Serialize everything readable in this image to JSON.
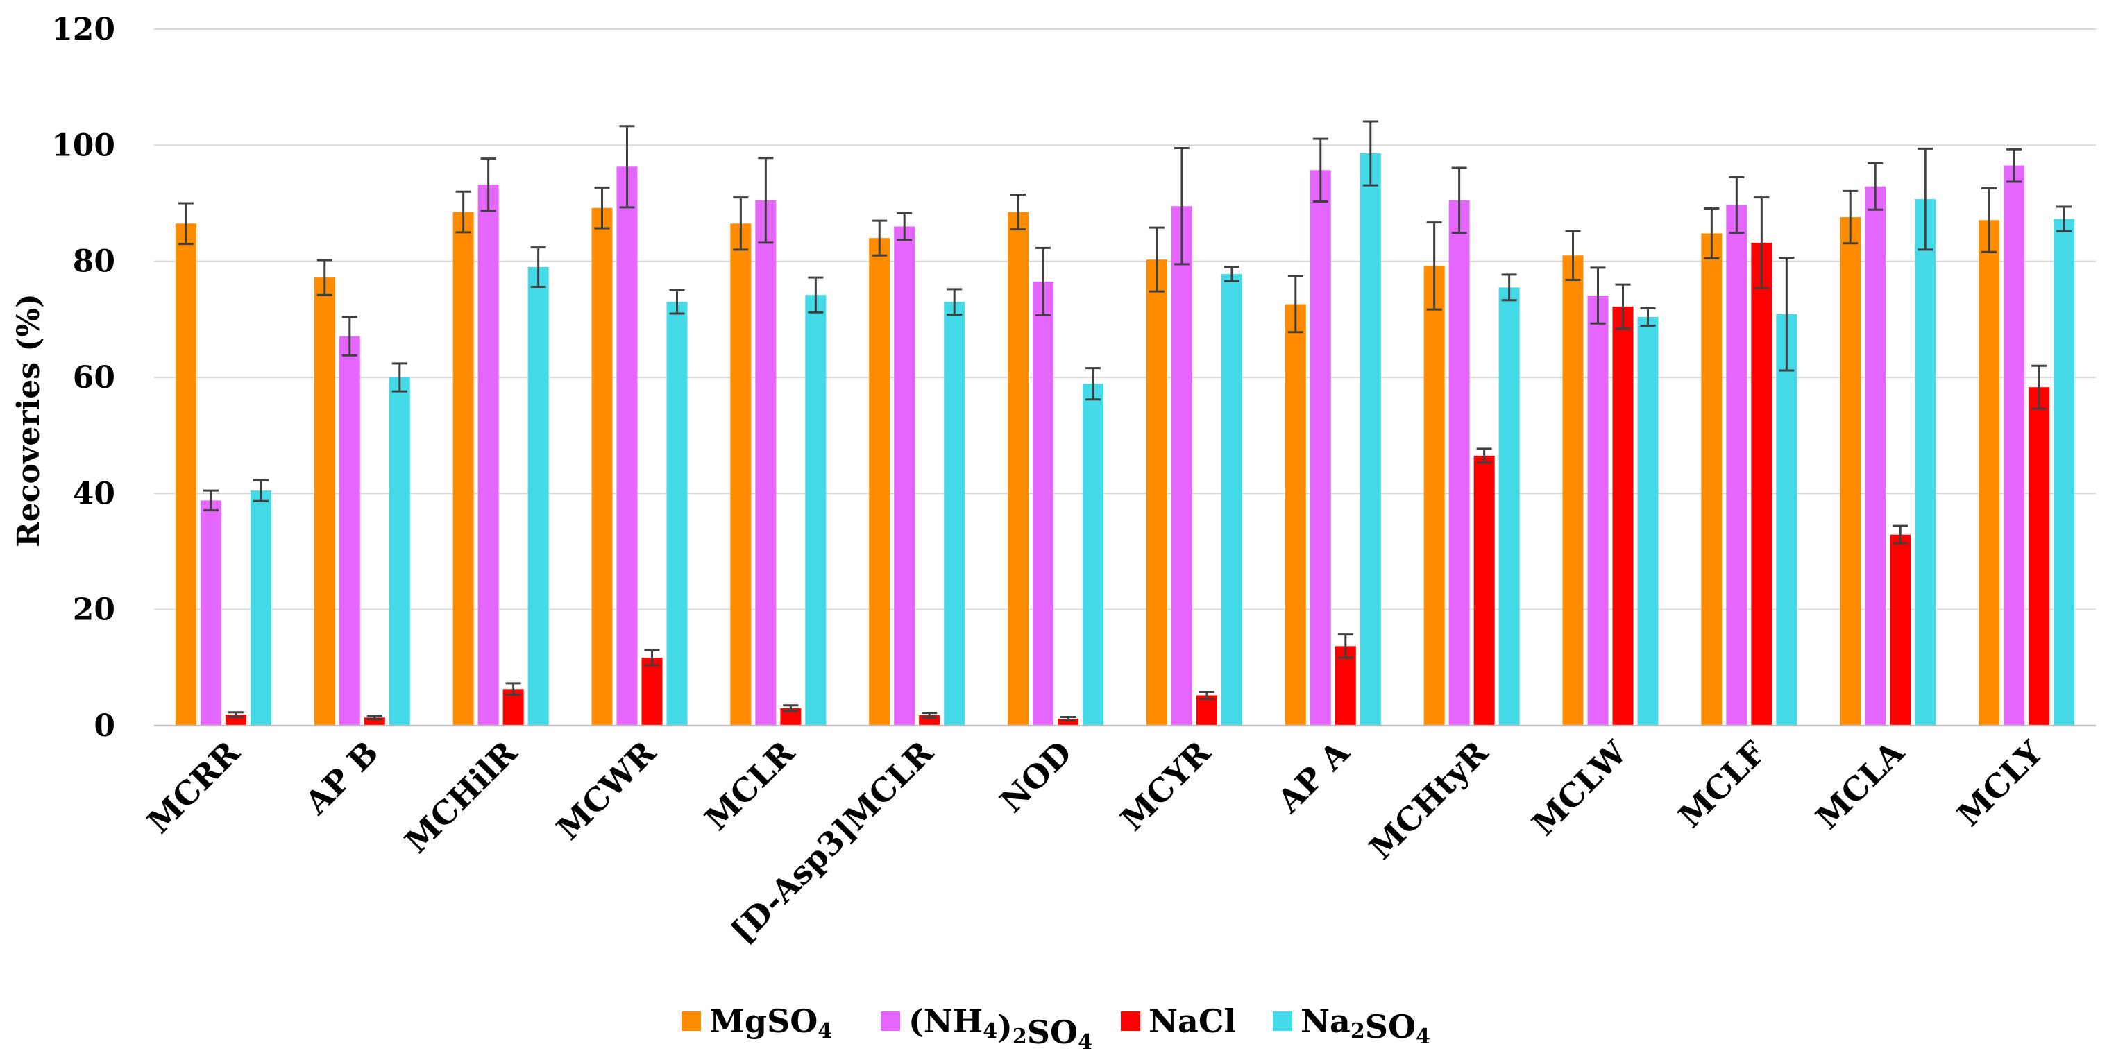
{
  "chart_data": {
    "type": "bar",
    "title": "",
    "xlabel": "",
    "ylabel": "Recoveries (%)",
    "ylim": [
      0,
      120
    ],
    "yticks": [
      0,
      20,
      40,
      60,
      80,
      100,
      120
    ],
    "grid": "horizontal",
    "legend_position": "bottom-center",
    "categories": [
      "MCRR",
      "AP B",
      "MCHilR",
      "MCWR",
      "MCLR",
      "[D-Asp3]MCLR",
      "NOD",
      "MCYR",
      "AP A",
      "MCHtyR",
      "MCLW",
      "MCLF",
      "MCLA",
      "MCLY"
    ],
    "series": [
      {
        "name": "MgSO4",
        "legend_parts": [
          {
            "t": "MgSO"
          },
          {
            "t": "4",
            "sub": true
          }
        ],
        "color": "#FF8C00",
        "values": [
          86.5,
          77.2,
          88.5,
          89.2,
          86.5,
          84.0,
          88.5,
          80.3,
          72.6,
          79.2,
          81.0,
          84.8,
          87.6,
          87.1
        ],
        "errors": [
          3.5,
          3.0,
          3.5,
          3.5,
          4.5,
          3.0,
          3.0,
          5.5,
          4.8,
          7.5,
          4.2,
          4.3,
          4.5,
          5.5
        ]
      },
      {
        "name": "(NH4)2SO4",
        "legend_parts": [
          {
            "t": "(NH"
          },
          {
            "t": "4",
            "sub": true
          },
          {
            "t": ")"
          },
          {
            "t": "2",
            "sub": true
          },
          {
            "t": "SO"
          },
          {
            "t": "4",
            "sub": true
          }
        ],
        "color": "#E566FF",
        "values": [
          38.8,
          67.1,
          93.2,
          96.3,
          90.5,
          86.0,
          76.5,
          89.5,
          95.7,
          90.5,
          74.1,
          89.7,
          92.9,
          96.5
        ],
        "errors": [
          1.7,
          3.3,
          4.5,
          7.0,
          7.3,
          2.3,
          5.8,
          10.0,
          5.4,
          5.6,
          4.8,
          4.8,
          4.0,
          2.8
        ]
      },
      {
        "name": "NaCl",
        "legend_parts": [
          {
            "t": "NaCl"
          }
        ],
        "color": "#FF0000",
        "values": [
          1.9,
          1.4,
          6.3,
          11.7,
          3.0,
          1.8,
          1.2,
          5.2,
          13.7,
          46.5,
          72.2,
          83.2,
          32.9,
          58.3
        ],
        "errors": [
          0.4,
          0.3,
          1.0,
          1.3,
          0.5,
          0.4,
          0.3,
          0.6,
          2.0,
          1.2,
          3.8,
          7.8,
          1.5,
          3.7
        ]
      },
      {
        "name": "Na2SO4",
        "legend_parts": [
          {
            "t": "Na"
          },
          {
            "t": "2",
            "sub": true
          },
          {
            "t": "SO"
          },
          {
            "t": "4",
            "sub": true
          }
        ],
        "color": "#44D9E6",
        "values": [
          40.5,
          60.0,
          79.0,
          73.0,
          74.2,
          73.0,
          58.9,
          77.8,
          98.6,
          75.5,
          70.4,
          70.9,
          90.7,
          87.3
        ],
        "errors": [
          1.8,
          2.4,
          3.4,
          2.0,
          3.0,
          2.2,
          2.7,
          1.2,
          5.5,
          2.2,
          1.5,
          9.7,
          8.7,
          2.1
        ]
      }
    ]
  }
}
